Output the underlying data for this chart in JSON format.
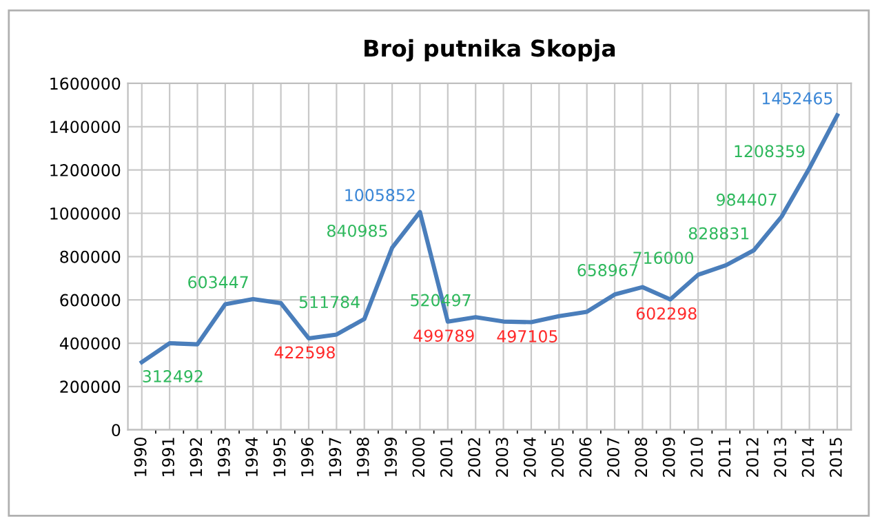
{
  "chart_data": {
    "type": "line",
    "title": "Broj putnika Skopja",
    "categories": [
      "1990",
      "1991",
      "1992",
      "1993",
      "1994",
      "1995",
      "1996",
      "1997",
      "1998",
      "1999",
      "2000",
      "2001",
      "2002",
      "2003",
      "2004",
      "2005",
      "2006",
      "2007",
      "2008",
      "2009",
      "2010",
      "2011",
      "2012",
      "2013",
      "2014",
      "2015"
    ],
    "series": [
      {
        "color": "#4a7ebb",
        "values": [
          312492,
          400000,
          395000,
          580000,
          603447,
          585000,
          422598,
          440000,
          511784,
          840985,
          1005852,
          499789,
          520497,
          500000,
          497105,
          525000,
          545000,
          625000,
          658967,
          602298,
          716000,
          760000,
          828831,
          984407,
          1208359,
          1452465
        ],
        "value_labels": [
          "312492",
          null,
          null,
          null,
          "603447",
          null,
          "422598",
          null,
          "511784",
          "840985",
          "1005852",
          "499789",
          "520497",
          null,
          "497105",
          null,
          null,
          null,
          "658967",
          "602298",
          "716000",
          null,
          "828831",
          "984407",
          "1208359",
          "1452465"
        ]
      }
    ],
    "ylim": [
      0,
      1600000
    ],
    "yticks": [
      0,
      200000,
      400000,
      600000,
      800000,
      1000000,
      1200000,
      1400000,
      1600000
    ],
    "grid": true,
    "legend": false,
    "marker": "none",
    "line_style": "solid"
  }
}
